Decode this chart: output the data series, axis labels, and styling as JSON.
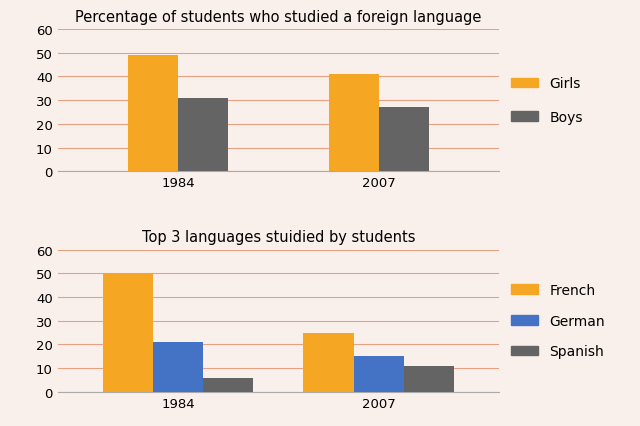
{
  "chart1": {
    "title": "Percentage of students who studied a foreign language",
    "years": [
      "1984",
      "2007"
    ],
    "girls": [
      49,
      41
    ],
    "boys": [
      31,
      27
    ],
    "colors": {
      "girls": "#F5A623",
      "boys": "#646464"
    },
    "legend": [
      "Girls",
      "Boys"
    ],
    "ylim": [
      0,
      60
    ],
    "yticks": [
      0,
      10,
      20,
      30,
      40,
      50,
      60
    ]
  },
  "chart2": {
    "title": "Top 3 languages stuidied by students",
    "years": [
      "1984",
      "2007"
    ],
    "french": [
      50,
      25
    ],
    "german": [
      21,
      15
    ],
    "spanish": [
      6,
      11
    ],
    "colors": {
      "french": "#F5A623",
      "german": "#4472C4",
      "spanish": "#646464"
    },
    "legend": [
      "French",
      "German",
      "Spanish"
    ],
    "ylim": [
      0,
      60
    ],
    "yticks": [
      0,
      10,
      20,
      30,
      40,
      50,
      60
    ]
  },
  "background_color": "#FAF0EB",
  "grid_color": "#E8A080",
  "bar_width": 0.25,
  "title_fontsize": 10.5,
  "tick_fontsize": 9.5,
  "legend_fontsize": 10
}
